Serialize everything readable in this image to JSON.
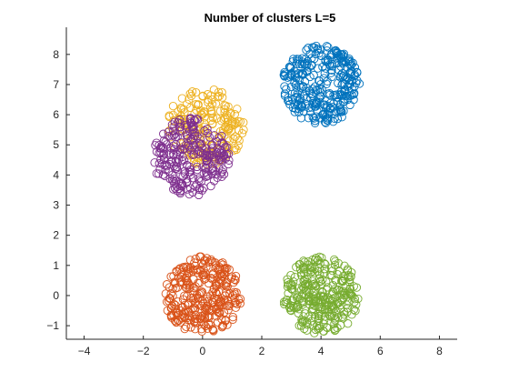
{
  "chart_data": {
    "type": "scatter",
    "title": "Number of clusters L=5",
    "xlabel": "",
    "ylabel": "",
    "xlim": [
      -4.6,
      8.6
    ],
    "ylim": [
      -1.45,
      8.9
    ],
    "xticks": [
      -4,
      -2,
      0,
      2,
      4,
      6,
      8
    ],
    "yticks": [
      -1,
      0,
      1,
      2,
      3,
      4,
      5,
      6,
      7,
      8
    ],
    "grid": false,
    "legend": "none",
    "marker": "open-circle",
    "series": [
      {
        "color": "#0072BD",
        "center": [
          4,
          7
        ],
        "radius": 1.3,
        "count": 300
      },
      {
        "color": "#EDB120",
        "center": [
          0.1,
          5.6
        ],
        "radius": 1.3,
        "count": 200
      },
      {
        "color": "#7E2F8E",
        "center": [
          -0.4,
          4.6
        ],
        "radius": 1.3,
        "count": 250
      },
      {
        "color": "#D95319",
        "center": [
          0,
          0
        ],
        "radius": 1.3,
        "count": 300
      },
      {
        "color": "#77AC30",
        "center": [
          4,
          0
        ],
        "radius": 1.3,
        "count": 300
      }
    ]
  }
}
